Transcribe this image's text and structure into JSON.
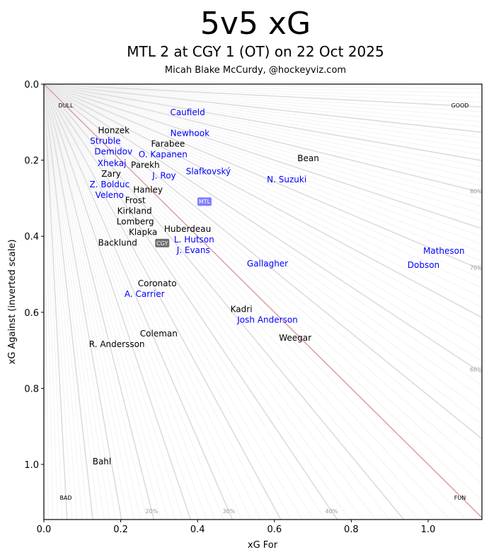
{
  "chart_data": {
    "type": "scatter",
    "title": "5v5 xG",
    "subtitle": "MTL 2 at CGY 1 (OT) on 22 Oct 2025",
    "credit": "Micah Blake McCurdy, @hockeyviz.com",
    "xlabel": "xG For",
    "ylabel": "xG Against (inverted scale)",
    "xlim": [
      0,
      1.14
    ],
    "ylim": [
      0,
      1.145
    ],
    "y_inverted": true,
    "xticks": [
      "0.0",
      "0.2",
      "0.4",
      "0.6",
      "0.8",
      "1.0"
    ],
    "yticks": [
      "0.0",
      "0.2",
      "0.4",
      "0.6",
      "0.8",
      "1.0"
    ],
    "corner_labels": {
      "top_left": "DULL",
      "top_right": "GOOD",
      "bottom_left": "BAD",
      "bottom_right": "FUN"
    },
    "percent_labels": {
      "bottom": [
        "20%",
        "30%",
        "40%"
      ],
      "right": [
        "60%",
        "70%",
        "80%"
      ]
    },
    "colors": {
      "MTL": "#0000ff",
      "CGY": "#000000",
      "diagonal": "#d9a0a0",
      "rays": "#e0e0e0"
    },
    "teams": [
      {
        "name": "MTL",
        "x": 0.418,
        "y": 0.309,
        "color": "#7f7fff"
      },
      {
        "name": "CGY",
        "x": 0.308,
        "y": 0.418,
        "color": "#6e6e6e"
      }
    ],
    "players": [
      {
        "name": "Caufield",
        "team": "MTL",
        "x": 0.374,
        "y": 0.074
      },
      {
        "name": "Struble",
        "team": "MTL",
        "x": 0.16,
        "y": 0.143
      },
      {
        "name": "Demidov",
        "team": "MTL",
        "x": 0.181,
        "y": 0.171
      },
      {
        "name": "O. Kapanen",
        "team": "MTL",
        "x": 0.31,
        "y": 0.175
      },
      {
        "name": "Newhook",
        "team": "MTL",
        "x": 0.38,
        "y": 0.171
      },
      {
        "name": "J. Roy",
        "team": "MTL",
        "x": 0.313,
        "y": 0.21
      },
      {
        "name": "Slafkovský",
        "team": "MTL",
        "x": 0.428,
        "y": 0.23
      },
      {
        "name": "N. Suzuki",
        "team": "MTL",
        "x": 0.632,
        "y": 0.251
      },
      {
        "name": "Xhekaj",
        "team": "MTL",
        "x": 0.177,
        "y": 0.223
      },
      {
        "name": "Z. Bolduc",
        "team": "MTL",
        "x": 0.171,
        "y": 0.258
      },
      {
        "name": "Veleno",
        "team": "MTL",
        "x": 0.171,
        "y": 0.286
      },
      {
        "name": "L. Hutson",
        "team": "MTL",
        "x": 0.391,
        "y": 0.403
      },
      {
        "name": "J. Evans",
        "team": "MTL",
        "x": 0.389,
        "y": 0.431
      },
      {
        "name": "Gallagher",
        "team": "MTL",
        "x": 0.582,
        "y": 0.472
      },
      {
        "name": "Matheson",
        "team": "MTL",
        "x": 1.041,
        "y": 0.439
      },
      {
        "name": "Dobson",
        "team": "MTL",
        "x": 0.988,
        "y": 0.476
      },
      {
        "name": "A. Carrier",
        "team": "MTL",
        "x": 0.262,
        "y": 0.543
      },
      {
        "name": "Josh Anderson",
        "team": "MTL",
        "x": 0.582,
        "y": 0.61
      },
      {
        "name": "Honzek",
        "team": "CGY",
        "x": 0.182,
        "y": 0.138
      },
      {
        "name": "Farabee",
        "team": "CGY",
        "x": 0.323,
        "y": 0.162
      },
      {
        "name": "Parekh",
        "team": "CGY",
        "x": 0.264,
        "y": 0.204
      },
      {
        "name": "Bean",
        "team": "CGY",
        "x": 0.688,
        "y": 0.195
      },
      {
        "name": "Zary",
        "team": "CGY",
        "x": 0.175,
        "y": 0.232
      },
      {
        "name": "Hanley",
        "team": "CGY",
        "x": 0.271,
        "y": 0.281
      },
      {
        "name": "Frost",
        "team": "CGY",
        "x": 0.238,
        "y": 0.312
      },
      {
        "name": "Kirkland",
        "team": "CGY",
        "x": 0.236,
        "y": 0.34
      },
      {
        "name": "Lomberg",
        "team": "CGY",
        "x": 0.238,
        "y": 0.368
      },
      {
        "name": "Backlund",
        "team": "CGY",
        "x": 0.192,
        "y": 0.392
      },
      {
        "name": "Klapka",
        "team": "CGY",
        "x": 0.258,
        "y": 0.39
      },
      {
        "name": "Huberdeau",
        "team": "CGY",
        "x": 0.374,
        "y": 0.409
      },
      {
        "name": "Coronato",
        "team": "CGY",
        "x": 0.295,
        "y": 0.533
      },
      {
        "name": "Kadri",
        "team": "CGY",
        "x": 0.514,
        "y": 0.602
      },
      {
        "name": "Weegar",
        "team": "CGY",
        "x": 0.654,
        "y": 0.667
      },
      {
        "name": "Coleman",
        "team": "CGY",
        "x": 0.299,
        "y": 0.656
      },
      {
        "name": "R. Andersson",
        "team": "CGY",
        "x": 0.19,
        "y": 0.684
      },
      {
        "name": "Bahl",
        "team": "CGY",
        "x": 0.151,
        "y": 0.993
      }
    ]
  }
}
